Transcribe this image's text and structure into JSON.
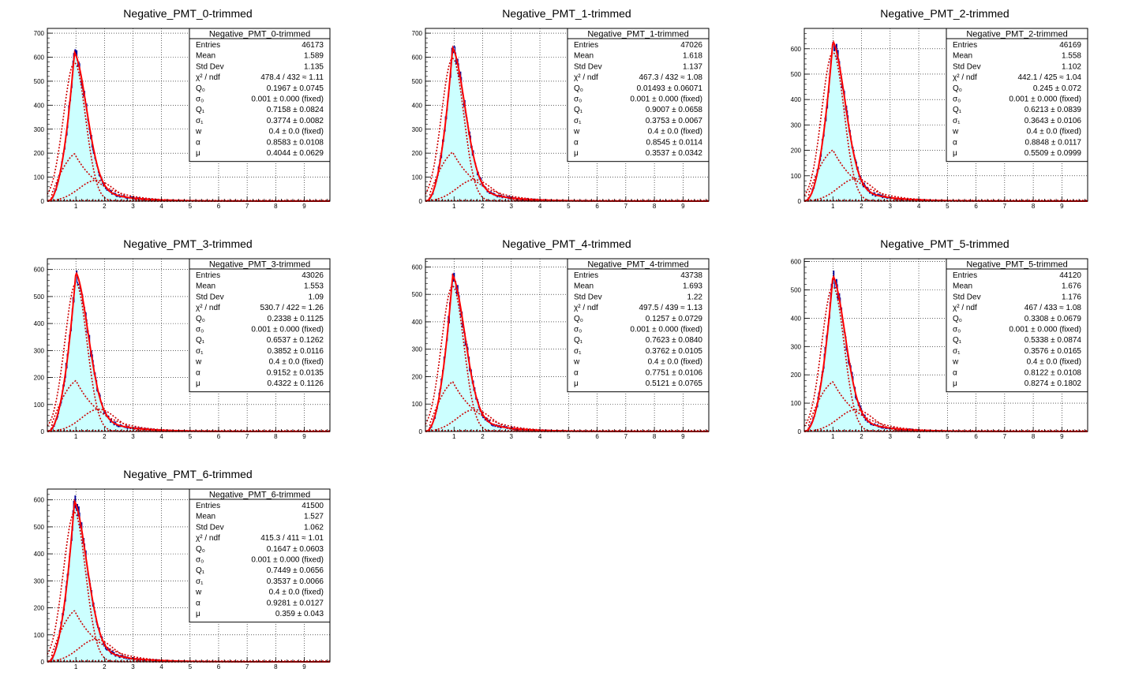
{
  "chart_data": [
    {
      "type": "histogram",
      "title": "Negative_PMT_0-trimmed",
      "xlim": [
        0,
        9.9
      ],
      "ylim": [
        0,
        720
      ],
      "xticks": [
        1,
        2,
        3,
        4,
        5,
        6,
        7,
        8,
        9
      ],
      "yticks": [
        0,
        100,
        200,
        300,
        400,
        500,
        600,
        700
      ],
      "peak": 620,
      "peak_x": 0.95,
      "hist_peak": 690,
      "stats": {
        "title": "Negative_PMT_0-trimmed",
        "rows": [
          {
            "label": "Entries",
            "value": "46173"
          },
          {
            "label": "Mean",
            "value": "1.589"
          },
          {
            "label": "Std Dev",
            "value": "1.135"
          },
          {
            "label": "χ² / ndf",
            "value": "478.4 / 432 ≈ 1.11"
          },
          {
            "label": "Q₀",
            "value": "0.1967 ± 0.0745"
          },
          {
            "label": "σ₀",
            "value": "0.001 ± 0.000  (fixed)"
          },
          {
            "label": "Q₁",
            "value": "0.7158 ± 0.0824"
          },
          {
            "label": "σ₁",
            "value": "0.3774 ± 0.0082"
          },
          {
            "label": "w",
            "value": "0.4 ± 0.0  (fixed)"
          },
          {
            "label": "α",
            "value": "0.8583 ± 0.0108"
          },
          {
            "label": "μ",
            "value": "0.4044 ± 0.0629"
          }
        ]
      }
    },
    {
      "type": "histogram",
      "title": "Negative_PMT_1-trimmed",
      "xlim": [
        0,
        9.9
      ],
      "ylim": [
        0,
        720
      ],
      "xticks": [
        1,
        2,
        3,
        4,
        5,
        6,
        7,
        8,
        9
      ],
      "yticks": [
        0,
        100,
        200,
        300,
        400,
        500,
        600,
        700
      ],
      "peak": 640,
      "peak_x": 0.95,
      "hist_peak": 695,
      "stats": {
        "title": "Negative_PMT_1-trimmed",
        "rows": [
          {
            "label": "Entries",
            "value": "47026"
          },
          {
            "label": "Mean",
            "value": "1.618"
          },
          {
            "label": "Std Dev",
            "value": "1.137"
          },
          {
            "label": "χ² / ndf",
            "value": "467.3 / 432 ≈ 1.08"
          },
          {
            "label": "Q₀",
            "value": "0.01493 ± 0.06071"
          },
          {
            "label": "σ₀",
            "value": "0.001 ± 0.000  (fixed)"
          },
          {
            "label": "Q₁",
            "value": "0.9007 ± 0.0658"
          },
          {
            "label": "σ₁",
            "value": "0.3753 ± 0.0067"
          },
          {
            "label": "w",
            "value": "0.4 ± 0.0  (fixed)"
          },
          {
            "label": "α",
            "value": "0.8545 ± 0.0114"
          },
          {
            "label": "μ",
            "value": "0.3537 ± 0.0342"
          }
        ]
      }
    },
    {
      "type": "histogram",
      "title": "Negative_PMT_2-trimmed",
      "xlim": [
        0,
        9.9
      ],
      "ylim": [
        0,
        680
      ],
      "xticks": [
        1,
        2,
        3,
        4,
        5,
        6,
        7,
        8,
        9
      ],
      "yticks": [
        0,
        100,
        200,
        300,
        400,
        500,
        600
      ],
      "peak": 630,
      "peak_x": 1.0,
      "hist_peak": 670,
      "stats": {
        "title": "Negative_PMT_2-trimmed",
        "rows": [
          {
            "label": "Entries",
            "value": "46169"
          },
          {
            "label": "Mean",
            "value": "1.558"
          },
          {
            "label": "Std Dev",
            "value": "1.102"
          },
          {
            "label": "χ² / ndf",
            "value": "442.1 / 425 ≈ 1.04"
          },
          {
            "label": "Q₀",
            "value": "0.245 ± 0.072"
          },
          {
            "label": "σ₀",
            "value": "0.001 ± 0.000  (fixed)"
          },
          {
            "label": "Q₁",
            "value": "0.6213 ± 0.0839"
          },
          {
            "label": "σ₁",
            "value": "0.3643 ± 0.0106"
          },
          {
            "label": "w",
            "value": "0.4 ± 0.0  (fixed)"
          },
          {
            "label": "α",
            "value": "0.8848 ± 0.0117"
          },
          {
            "label": "μ",
            "value": "0.5509 ± 0.0999"
          }
        ]
      }
    },
    {
      "type": "histogram",
      "title": "Negative_PMT_3-trimmed",
      "xlim": [
        0,
        9.9
      ],
      "ylim": [
        0,
        640
      ],
      "xticks": [
        1,
        2,
        3,
        4,
        5,
        6,
        7,
        8,
        9
      ],
      "yticks": [
        0,
        100,
        200,
        300,
        400,
        500,
        600
      ],
      "peak": 590,
      "peak_x": 1.0,
      "hist_peak": 615,
      "stats": {
        "title": "Negative_PMT_3-trimmed",
        "rows": [
          {
            "label": "Entries",
            "value": "43026"
          },
          {
            "label": "Mean",
            "value": "1.553"
          },
          {
            "label": "Std Dev",
            "value": "1.09"
          },
          {
            "label": "χ² / ndf",
            "value": "530.7 / 422 ≈ 1.26"
          },
          {
            "label": "Q₀",
            "value": "0.2338 ± 0.1125"
          },
          {
            "label": "σ₀",
            "value": "0.001 ± 0.000  (fixed)"
          },
          {
            "label": "Q₁",
            "value": "0.6537 ± 0.1262"
          },
          {
            "label": "σ₁",
            "value": "0.3852 ± 0.0116"
          },
          {
            "label": "w",
            "value": "0.4 ± 0.0  (fixed)"
          },
          {
            "label": "α",
            "value": "0.9152 ± 0.0135"
          },
          {
            "label": "μ",
            "value": "0.4322 ± 0.1126"
          }
        ]
      }
    },
    {
      "type": "histogram",
      "title": "Negative_PMT_4-trimmed",
      "xlim": [
        0,
        9.9
      ],
      "ylim": [
        0,
        630
      ],
      "xticks": [
        1,
        2,
        3,
        4,
        5,
        6,
        7,
        8,
        9
      ],
      "yticks": [
        0,
        100,
        200,
        300,
        400,
        500,
        600
      ],
      "peak": 570,
      "peak_x": 0.95,
      "hist_peak": 610,
      "stats": {
        "title": "Negative_PMT_4-trimmed",
        "rows": [
          {
            "label": "Entries",
            "value": "43738"
          },
          {
            "label": "Mean",
            "value": "1.693"
          },
          {
            "label": "Std Dev",
            "value": "1.22"
          },
          {
            "label": "χ² / ndf",
            "value": "497.5 / 439 ≈ 1.13"
          },
          {
            "label": "Q₀",
            "value": "0.1257 ± 0.0729"
          },
          {
            "label": "σ₀",
            "value": "0.001 ± 0.000  (fixed)"
          },
          {
            "label": "Q₁",
            "value": "0.7623 ± 0.0840"
          },
          {
            "label": "σ₁",
            "value": "0.3762 ± 0.0105"
          },
          {
            "label": "w",
            "value": "0.4 ± 0.0  (fixed)"
          },
          {
            "label": "α",
            "value": "0.7751 ± 0.0106"
          },
          {
            "label": "μ",
            "value": "0.5121 ± 0.0765"
          }
        ]
      }
    },
    {
      "type": "histogram",
      "title": "Negative_PMT_5-trimmed",
      "xlim": [
        0,
        9.9
      ],
      "ylim": [
        0,
        610
      ],
      "xticks": [
        1,
        2,
        3,
        4,
        5,
        6,
        7,
        8,
        9
      ],
      "yticks": [
        0,
        100,
        200,
        300,
        400,
        500,
        600
      ],
      "peak": 550,
      "peak_x": 1.0,
      "hist_peak": 560,
      "stats": {
        "title": "Negative_PMT_5-trimmed",
        "rows": [
          {
            "label": "Entries",
            "value": "44120"
          },
          {
            "label": "Mean",
            "value": "1.676"
          },
          {
            "label": "Std Dev",
            "value": "1.176"
          },
          {
            "label": "χ² / ndf",
            "value": "467 / 433 ≈ 1.08"
          },
          {
            "label": "Q₀",
            "value": "0.3308 ± 0.0679"
          },
          {
            "label": "σ₀",
            "value": "0.001 ± 0.000  (fixed)"
          },
          {
            "label": "Q₁",
            "value": "0.5338 ± 0.0874"
          },
          {
            "label": "σ₁",
            "value": "0.3576 ± 0.0165"
          },
          {
            "label": "w",
            "value": "0.4 ± 0.0  (fixed)"
          },
          {
            "label": "α",
            "value": "0.8122 ± 0.0108"
          },
          {
            "label": "μ",
            "value": "0.8274 ± 0.1802"
          }
        ]
      }
    },
    {
      "type": "histogram",
      "title": "Negative_PMT_6-trimmed",
      "xlim": [
        0,
        9.9
      ],
      "ylim": [
        0,
        640
      ],
      "xticks": [
        1,
        2,
        3,
        4,
        5,
        6,
        7,
        8,
        9
      ],
      "yticks": [
        0,
        100,
        200,
        300,
        400,
        500,
        600
      ],
      "peak": 595,
      "peak_x": 0.95,
      "hist_peak": 615,
      "stats": {
        "title": "Negative_PMT_6-trimmed",
        "rows": [
          {
            "label": "Entries",
            "value": "41500"
          },
          {
            "label": "Mean",
            "value": "1.527"
          },
          {
            "label": "Std Dev",
            "value": "1.062"
          },
          {
            "label": "χ² / ndf",
            "value": "415.3 / 411 ≈ 1.01"
          },
          {
            "label": "Q₀",
            "value": "0.1647 ± 0.0603"
          },
          {
            "label": "σ₀",
            "value": "0.001 ± 0.000  (fixed)"
          },
          {
            "label": "Q₁",
            "value": "0.7449 ± 0.0656"
          },
          {
            "label": "σ₁",
            "value": "0.3537 ± 0.0066"
          },
          {
            "label": "w",
            "value": "0.4 ± 0.0  (fixed)"
          },
          {
            "label": "α",
            "value": "0.9281 ± 0.0127"
          },
          {
            "label": "μ",
            "value": "0.359 ± 0.043"
          }
        ]
      }
    }
  ],
  "colors": {
    "fill": "#ccffff",
    "histline": "#000099",
    "fit": "#ff0000",
    "component": "#cc0000",
    "grid": "#000000"
  }
}
